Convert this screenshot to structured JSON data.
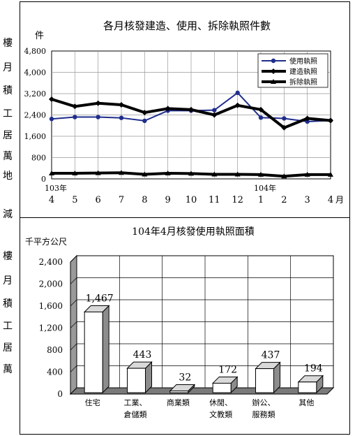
{
  "side_text": [
    "樓",
    "月",
    "積",
    "工",
    "居",
    "萬",
    "地",
    "減",
    "樓",
    "月",
    "積",
    "工",
    "居",
    "萬"
  ],
  "chart_data": [
    {
      "type": "line",
      "title": "各月核發建造、使用、拆除執照件數",
      "ylabel": "件",
      "xunit": "月",
      "year_markers": [
        {
          "label": "103年",
          "index": 0
        },
        {
          "label": "104年",
          "index": 9
        }
      ],
      "categories": [
        "4",
        "5",
        "6",
        "7",
        "8",
        "9",
        "10",
        "11",
        "12",
        "1",
        "2",
        "3",
        "4"
      ],
      "yticks": [
        "0",
        "800",
        "1,600",
        "2,400",
        "3,200",
        "4,000",
        "4,800"
      ],
      "ylim": [
        0,
        4800
      ],
      "grid": true,
      "legend": "top-right",
      "series": [
        {
          "name": "使用執照",
          "marker": "circle",
          "color": "#1f2d8c",
          "values": [
            2250,
            2320,
            2320,
            2290,
            2180,
            2560,
            2560,
            2580,
            3230,
            2300,
            2270,
            2150,
            2190
          ]
        },
        {
          "name": "建造執照",
          "marker": "diamond",
          "color": "#000000",
          "values": [
            2990,
            2720,
            2840,
            2780,
            2490,
            2640,
            2600,
            2400,
            2760,
            2600,
            1920,
            2270,
            2190
          ]
        },
        {
          "name": "拆除執照",
          "marker": "triangle",
          "color": "#000000",
          "values": [
            210,
            210,
            220,
            230,
            170,
            210,
            200,
            170,
            170,
            160,
            100,
            160,
            160
          ]
        }
      ]
    },
    {
      "type": "bar",
      "title": "104年4月核發使用執照面積",
      "ylabel": "千平方公尺",
      "categories": [
        [
          "住宅"
        ],
        [
          "工業、",
          "倉儲類"
        ],
        [
          "商業類"
        ],
        [
          "休閒、",
          "文教類"
        ],
        [
          "辦公、",
          "服務類"
        ],
        [
          "其他"
        ]
      ],
      "values": [
        1467,
        443,
        32,
        172,
        437,
        194
      ],
      "labels": [
        "1,467",
        "443",
        "32",
        "172",
        "437",
        "194"
      ],
      "yticks": [
        "0",
        "400",
        "800",
        "1,200",
        "1,600",
        "2,000",
        "2,400"
      ],
      "ylim": [
        0,
        2400
      ],
      "grid": true
    }
  ]
}
